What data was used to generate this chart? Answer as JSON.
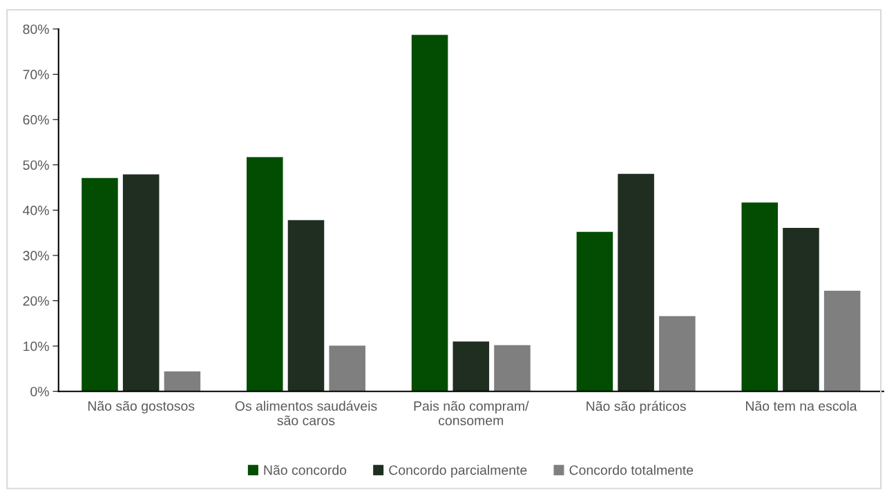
{
  "chart_data": {
    "type": "bar",
    "categories": [
      "Não são gostosos",
      "Os alimentos saudáveis\nsão caros",
      "Pais não compram/\nconsomem",
      "Não são práticos",
      "Não tem na escola"
    ],
    "series": [
      {
        "name": "Não concordo",
        "color": "#024d02",
        "values": [
          47.1,
          51.7,
          78.7,
          35.2,
          41.7
        ]
      },
      {
        "name": "Concordo parcialmente",
        "color": "#1f2e20",
        "values": [
          47.9,
          37.8,
          11.0,
          48.0,
          36.1
        ]
      },
      {
        "name": "Concordo totalmente",
        "color": "#7f7f7f",
        "values": [
          4.4,
          10.1,
          10.2,
          16.6,
          22.2
        ]
      }
    ],
    "ylim": [
      0,
      80
    ],
    "yticks": [
      {
        "value": 0,
        "label": "0%"
      },
      {
        "value": 10,
        "label": "10%"
      },
      {
        "value": 20,
        "label": "20%"
      },
      {
        "value": 30,
        "label": "30%"
      },
      {
        "value": 40,
        "label": "40%"
      },
      {
        "value": 50,
        "label": "50%"
      },
      {
        "value": 60,
        "label": "60%"
      },
      {
        "value": 70,
        "label": "70%"
      },
      {
        "value": 80,
        "label": "80%"
      }
    ],
    "grid": false,
    "legend": "bottom"
  }
}
